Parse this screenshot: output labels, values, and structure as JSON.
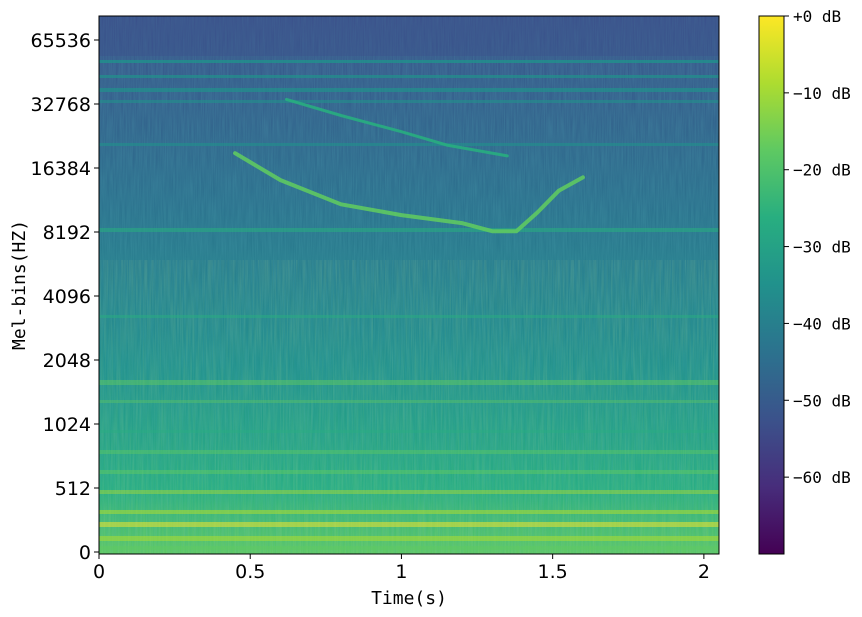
{
  "chart_data": {
    "type": "heatmap",
    "title": "",
    "xlabel": "Time(s)",
    "ylabel": "Mel-bins(HZ)",
    "x_range": [
      0,
      2.05
    ],
    "x_ticks": [
      {
        "value": 0,
        "label": "0"
      },
      {
        "value": 0.5,
        "label": "0.5"
      },
      {
        "value": 1,
        "label": "1"
      },
      {
        "value": 1.5,
        "label": "1.5"
      },
      {
        "value": 2,
        "label": "2"
      }
    ],
    "y_ticks": [
      "0",
      "512",
      "1024",
      "2048",
      "4096",
      "8192",
      "16384",
      "32768",
      "65536"
    ],
    "colormap": "viridis",
    "colormap_stops": [
      "#440154",
      "#472d7b",
      "#3b528b",
      "#2c728e",
      "#21918c",
      "#28ae80",
      "#5ec962",
      "#addc30",
      "#fde725"
    ],
    "colorbar": {
      "range_db": [
        -70,
        0
      ],
      "ticks": [
        {
          "value": 0,
          "label": "+0 dB"
        },
        {
          "value": -10,
          "label": "−10 dB"
        },
        {
          "value": -20,
          "label": "−20 dB"
        },
        {
          "value": -30,
          "label": "−30 dB"
        },
        {
          "value": -40,
          "label": "−40 dB"
        },
        {
          "value": -50,
          "label": "−50 dB"
        },
        {
          "value": -60,
          "label": "−60 dB"
        }
      ]
    },
    "features": [
      {
        "name": "chirp-main",
        "points": [
          [
            0.45,
            0.255
          ],
          [
            0.6,
            0.305
          ],
          [
            0.8,
            0.35
          ],
          [
            1.0,
            0.37
          ],
          [
            1.2,
            0.385
          ],
          [
            1.3,
            0.4
          ],
          [
            1.38,
            0.4
          ],
          [
            1.45,
            0.365
          ],
          [
            1.52,
            0.325
          ],
          [
            1.6,
            0.3
          ]
        ]
      },
      {
        "name": "chirp-harmonic",
        "points": [
          [
            0.62,
            0.155
          ],
          [
            0.8,
            0.185
          ],
          [
            1.0,
            0.215
          ],
          [
            1.15,
            0.24
          ],
          [
            1.35,
            0.26
          ]
        ]
      }
    ]
  }
}
